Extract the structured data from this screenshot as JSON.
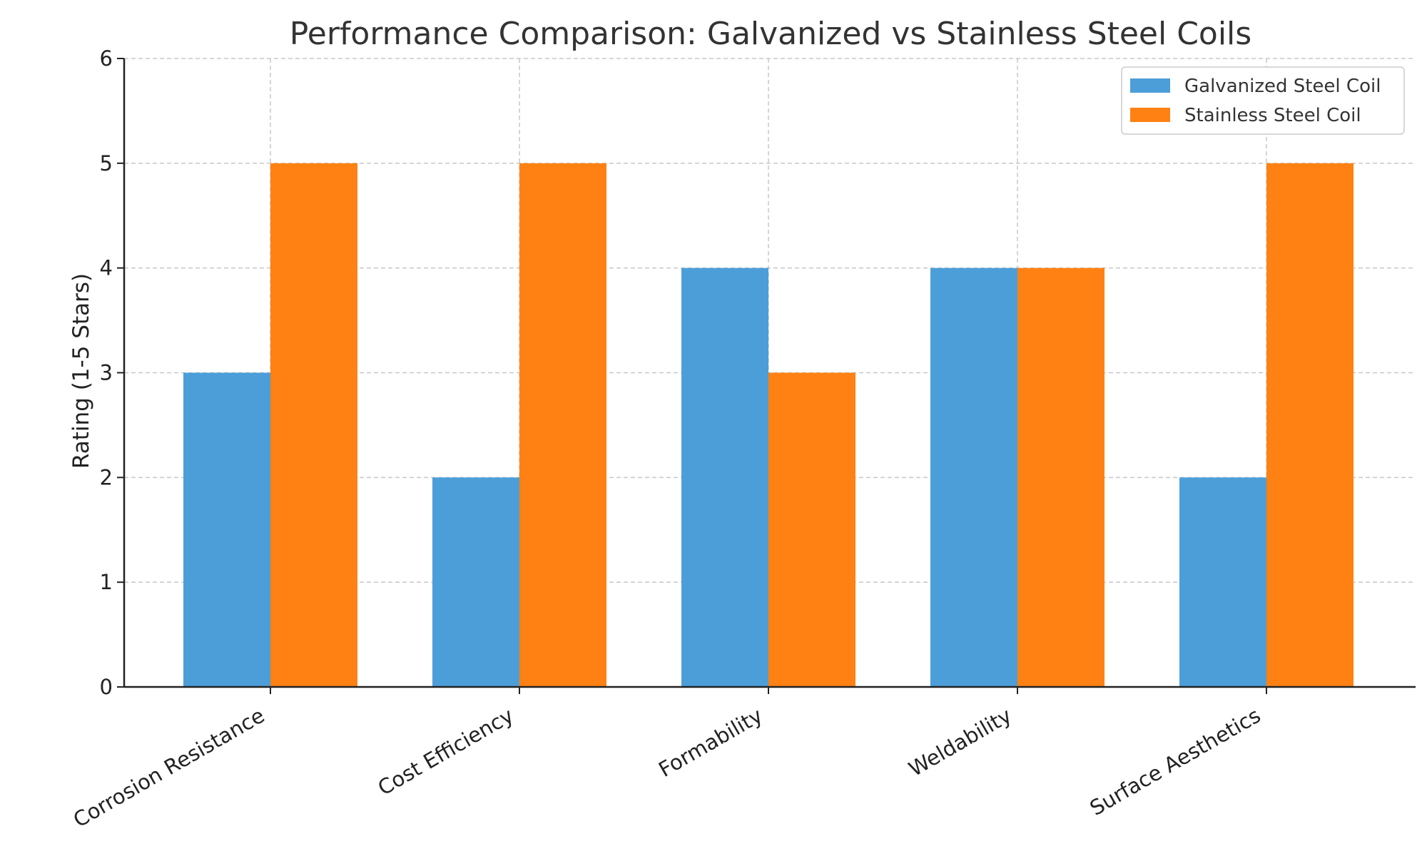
{
  "colors": {
    "galvanized": "#4c9ed9",
    "stainless": "#ff8113"
  },
  "chart_data": {
    "type": "bar",
    "title": "Performance Comparison: Galvanized vs Stainless Steel Coils",
    "xlabel": "",
    "ylabel": "Rating (1-5 Stars)",
    "categories": [
      "Corrosion Resistance",
      "Cost Efficiency",
      "Formability",
      "Weldability",
      "Surface Aesthetics"
    ],
    "series": [
      {
        "name": "Galvanized Steel Coil",
        "values": [
          3,
          2,
          4,
          4,
          2
        ],
        "color": "#4c9ed9"
      },
      {
        "name": "Stainless Steel Coil",
        "values": [
          5,
          5,
          3,
          4,
          5
        ],
        "color": "#ff8113"
      }
    ],
    "ylim": [
      0,
      6
    ],
    "yticks": [
      "0",
      "1",
      "2",
      "3",
      "4",
      "5",
      "6"
    ],
    "grid": true,
    "legend_position": "top-right"
  }
}
